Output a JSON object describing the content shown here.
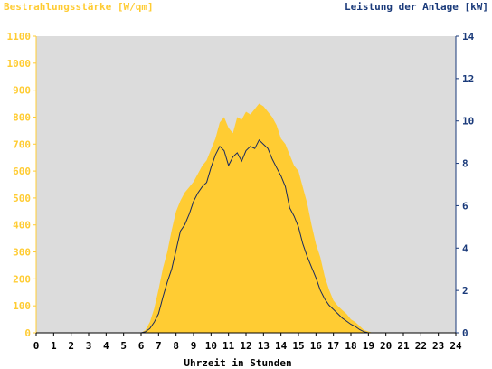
{
  "chart_data": {
    "type": "area",
    "title_left": "Bestrahlungsstärke [W/qm]",
    "title_right": "Leistung der Anlage [kW]",
    "xlabel": "Uhrzeit in Stunden",
    "x_ticks": [
      "0",
      "1",
      "2",
      "3",
      "4",
      "5",
      "6",
      "7",
      "8",
      "9",
      "10",
      "11",
      "12",
      "13",
      "14",
      "15",
      "16",
      "17",
      "18",
      "19",
      "20",
      "21",
      "22",
      "23",
      "24"
    ],
    "y_left_ticks": [
      "0",
      "100",
      "200",
      "300",
      "400",
      "500",
      "600",
      "700",
      "800",
      "900",
      "1000",
      "1100"
    ],
    "y_right_ticks": [
      "0",
      "2",
      "4",
      "6",
      "8",
      "10",
      "12",
      "14"
    ],
    "xlim": [
      0,
      24
    ],
    "ylim_left": [
      0,
      1100
    ],
    "ylim_right": [
      0,
      14
    ],
    "grid": false,
    "colors": {
      "irradiance": "#ffcc33",
      "power": "#1a2a5e",
      "plot_background": "#dcdcdc",
      "left_axis_text": "#ffcc33",
      "right_axis_text": "#1a3a7a",
      "bottom_axis_text": "#000000"
    },
    "series": [
      {
        "key": "irradiance",
        "axis": "left",
        "x": [
          0,
          6.0,
          6.25,
          6.5,
          6.75,
          7.0,
          7.25,
          7.5,
          7.75,
          8.0,
          8.25,
          8.5,
          8.75,
          9.0,
          9.25,
          9.5,
          9.75,
          10.0,
          10.25,
          10.5,
          10.75,
          11.0,
          11.25,
          11.5,
          11.75,
          12.0,
          12.25,
          12.5,
          12.75,
          13.0,
          13.25,
          13.5,
          13.75,
          14.0,
          14.25,
          14.5,
          14.75,
          15.0,
          15.25,
          15.5,
          15.75,
          16.0,
          16.25,
          16.5,
          16.75,
          17.0,
          17.25,
          17.5,
          17.75,
          18.0,
          18.25,
          18.5,
          18.75,
          19.0,
          19.25,
          24
        ],
        "values": [
          0,
          0,
          10,
          40,
          90,
          160,
          240,
          300,
          380,
          450,
          490,
          520,
          540,
          560,
          590,
          620,
          640,
          680,
          720,
          780,
          800,
          760,
          740,
          800,
          790,
          820,
          810,
          830,
          850,
          840,
          820,
          800,
          770,
          720,
          700,
          660,
          620,
          600,
          540,
          480,
          400,
          330,
          280,
          210,
          160,
          120,
          100,
          85,
          70,
          50,
          40,
          25,
          10,
          5,
          0,
          0
        ]
      },
      {
        "key": "power",
        "axis": "right",
        "x": [
          0,
          6.0,
          6.25,
          6.5,
          6.75,
          7.0,
          7.25,
          7.5,
          7.75,
          8.0,
          8.25,
          8.5,
          8.75,
          9.0,
          9.25,
          9.5,
          9.75,
          10.0,
          10.25,
          10.5,
          10.75,
          11.0,
          11.25,
          11.5,
          11.75,
          12.0,
          12.25,
          12.5,
          12.75,
          13.0,
          13.25,
          13.5,
          13.75,
          14.0,
          14.25,
          14.5,
          14.75,
          15.0,
          15.25,
          15.5,
          15.75,
          16.0,
          16.25,
          16.5,
          16.75,
          17.0,
          17.25,
          17.5,
          17.75,
          18.0,
          18.25,
          18.5,
          18.75,
          19.0,
          19.25,
          24
        ],
        "values": [
          0,
          0,
          0.05,
          0.2,
          0.5,
          0.9,
          1.7,
          2.4,
          3.0,
          3.9,
          4.8,
          5.1,
          5.6,
          6.2,
          6.6,
          6.9,
          7.1,
          7.8,
          8.4,
          8.8,
          8.6,
          7.9,
          8.3,
          8.5,
          8.1,
          8.6,
          8.8,
          8.7,
          9.1,
          8.9,
          8.7,
          8.2,
          7.8,
          7.4,
          6.9,
          5.9,
          5.5,
          5.0,
          4.2,
          3.6,
          3.1,
          2.6,
          2.0,
          1.6,
          1.3,
          1.1,
          0.9,
          0.7,
          0.55,
          0.4,
          0.3,
          0.15,
          0.05,
          0,
          0,
          0
        ]
      }
    ]
  }
}
